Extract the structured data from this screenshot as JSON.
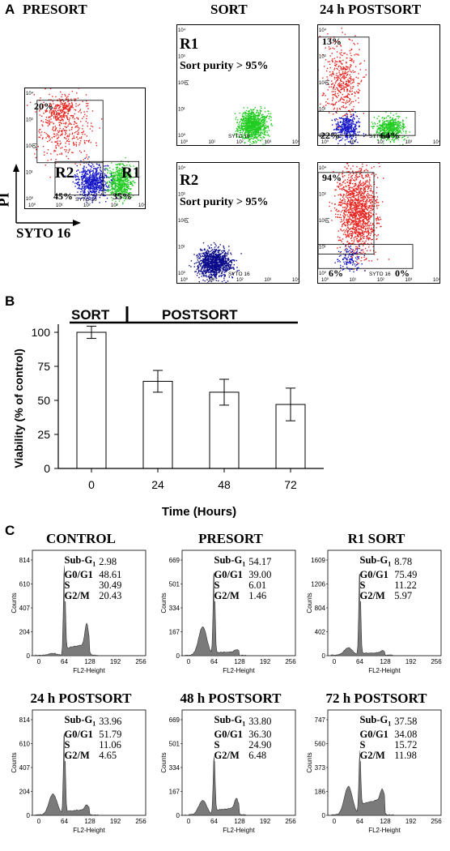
{
  "panel_labels": {
    "a": "A",
    "b": "B",
    "c": "C"
  },
  "panel_a": {
    "column_titles": {
      "presort": "PRESORT",
      "sort": "SORT",
      "postsort": "24 h POSTSORT"
    },
    "axis": {
      "x": "SYTO 16",
      "y": "PI"
    },
    "ticks": {
      "x": [
        "10⁰",
        "10¹",
        "10²",
        "10³",
        "10⁴"
      ],
      "y": [
        "10⁰",
        "10¹",
        "10²",
        "10³",
        "10⁴"
      ]
    },
    "presort": {
      "q_upper": "20%",
      "q_r2": "45%",
      "q_r1": "35%",
      "r2": "R2",
      "r1": "R1"
    },
    "sort_r1": {
      "label": "R1",
      "purity": "Sort purity > 95%"
    },
    "sort_r2": {
      "label": "R2",
      "purity": "Sort purity > 95%"
    },
    "post_r1": {
      "q_upper": "13%",
      "q_ll": "22%",
      "q_lr": "64%"
    },
    "post_r2": {
      "q_upper": "94%",
      "q_ll": "6%",
      "q_lr": "0%"
    },
    "big_axis": {
      "x": "SYTO 16",
      "y": "PI"
    }
  },
  "panel_b": {
    "sort_label": "SORT",
    "postsort_label": "POSTSORT",
    "ylabel": "Viability (% of control)",
    "xlabel": "Time (Hours)",
    "yticks": [
      "0",
      "25",
      "50",
      "75",
      "100"
    ]
  },
  "chart_data": {
    "type": "bar",
    "categories": [
      "0",
      "24",
      "48",
      "72"
    ],
    "values": [
      100,
      64,
      56,
      47
    ],
    "errors": [
      4.5,
      8,
      9.5,
      12
    ],
    "xlabel": "Time (Hours)",
    "ylabel": "Viability (% of control)",
    "ylim": [
      0,
      100
    ],
    "legend": "none",
    "grid": false
  },
  "panel_c": {
    "xlabel": "FL2-Height",
    "ylabel": "Counts",
    "xticks": [
      "0",
      "64",
      "128",
      "192",
      "256"
    ],
    "stat_names": {
      "subg1": "Sub-G",
      "subg1_sub": "1",
      "g0g1": "G0/G1",
      "s": "S",
      "g2m": "G2/M"
    },
    "histograms": [
      {
        "title": "CONTROL",
        "yticks": [
          "0",
          "204",
          "407",
          "610",
          "814"
        ],
        "subg1": "2.98",
        "g0g1": "48.61",
        "s": "30.49",
        "g2m": "20.43"
      },
      {
        "title": "PRESORT",
        "yticks": [
          "0",
          "167",
          "334",
          "501",
          "669"
        ],
        "subg1": "54.17",
        "g0g1": "39.00",
        "s": "6.01",
        "g2m": "1.46"
      },
      {
        "title": "R1 SORT",
        "yticks": [
          "0",
          "402",
          "804",
          "1206",
          "1609"
        ],
        "subg1": "8.78",
        "g0g1": "75.49",
        "s": "11.22",
        "g2m": "5.97"
      },
      {
        "title": "24 h POSTSORT",
        "yticks": [
          "0",
          "204",
          "407",
          "610",
          "814"
        ],
        "subg1": "33.96",
        "g0g1": "51.79",
        "s": "11.06",
        "g2m": "4.65"
      },
      {
        "title": "48 h POSTSORT",
        "yticks": [
          "0",
          "167",
          "334",
          "501",
          "669"
        ],
        "subg1": "33.80",
        "g0g1": "36.30",
        "s": "24.90",
        "g2m": "6.48"
      },
      {
        "title": "72 h POSTSORT",
        "yticks": [
          "0",
          "186",
          "373",
          "560",
          "747"
        ],
        "subg1": "37.58",
        "g0g1": "34.08",
        "s": "15.72",
        "g2m": "11.98"
      }
    ]
  },
  "colors": {
    "red": "#e8231f",
    "green": "#22cc22",
    "blue": "#1416c8",
    "navy": "#0a0a8a",
    "hist": "#7a7a7a"
  }
}
